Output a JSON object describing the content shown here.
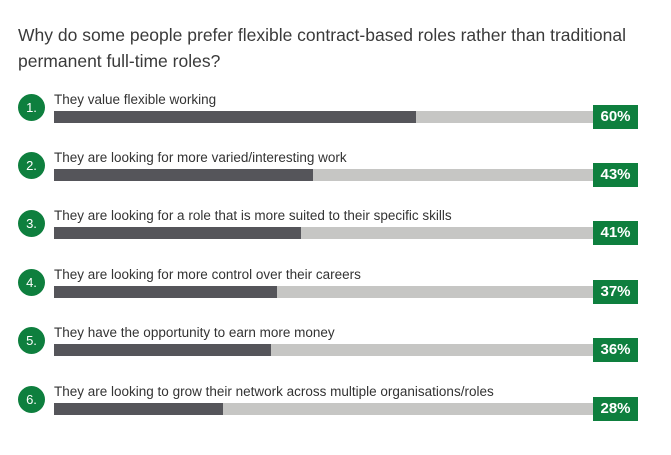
{
  "chart_data": {
    "type": "bar",
    "orientation": "horizontal",
    "title": "Why do some people prefer flexible contract-based roles rather than traditional permanent full-time roles?",
    "xlim": [
      0,
      100
    ],
    "grid": false,
    "legend": "none",
    "colors": {
      "fill": "#55555a",
      "track": "#c6c6c4",
      "accent": "#0e7f3e"
    },
    "items": [
      {
        "number": "1.",
        "category": "They value flexible working",
        "value": 60,
        "value_label": "60%"
      },
      {
        "number": "2.",
        "category": "They are looking for more varied/interesting work",
        "value": 43,
        "value_label": "43%"
      },
      {
        "number": "3.",
        "category": "They are looking for a role that is more suited to their specific skills",
        "value": 41,
        "value_label": "41%"
      },
      {
        "number": "4.",
        "category": "They are looking for more control over their careers",
        "value": 37,
        "value_label": "37%"
      },
      {
        "number": "5.",
        "category": "They have the opportunity to earn more money",
        "value": 36,
        "value_label": "36%"
      },
      {
        "number": "6.",
        "category": "They are looking to grow their network across multiple organisations/roles",
        "value": 28,
        "value_label": "28%"
      }
    ]
  }
}
